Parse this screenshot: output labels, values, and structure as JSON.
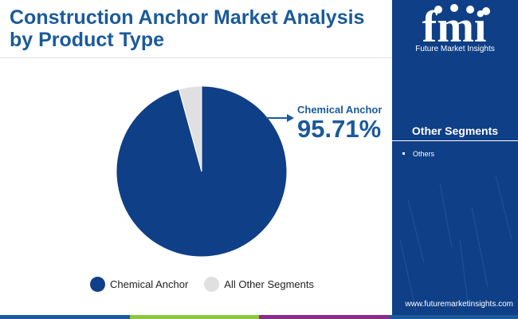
{
  "header": {
    "title": "Construction Anchor Market Analysis by Product Type"
  },
  "brand": {
    "logo_mark": "fmi",
    "logo_subtitle": "Future Market Insights",
    "website": "www.futuremarketinsights.com",
    "panel_color": "#0f3f86"
  },
  "side_panel": {
    "heading": "Other Segments",
    "items": [
      "Others"
    ]
  },
  "chart_data": {
    "type": "pie",
    "title": "Construction Anchor Market Analysis by Product Type",
    "slices": [
      {
        "label": "Chemical Anchor",
        "value": 95.71,
        "color": "#0f3f86"
      },
      {
        "label": "All Other Segments",
        "value": 4.29,
        "color": "#e0e0e0"
      }
    ],
    "callout": {
      "label": "Chemical Anchor",
      "value_text": "95.71%"
    },
    "legend": [
      "Chemical Anchor",
      "All Other Segments"
    ],
    "legend_position": "bottom"
  },
  "footer": {
    "stripe_colors": [
      "#1a5a9a",
      "#8dc63f",
      "#8a2c8a",
      "#1a5a9a"
    ]
  }
}
